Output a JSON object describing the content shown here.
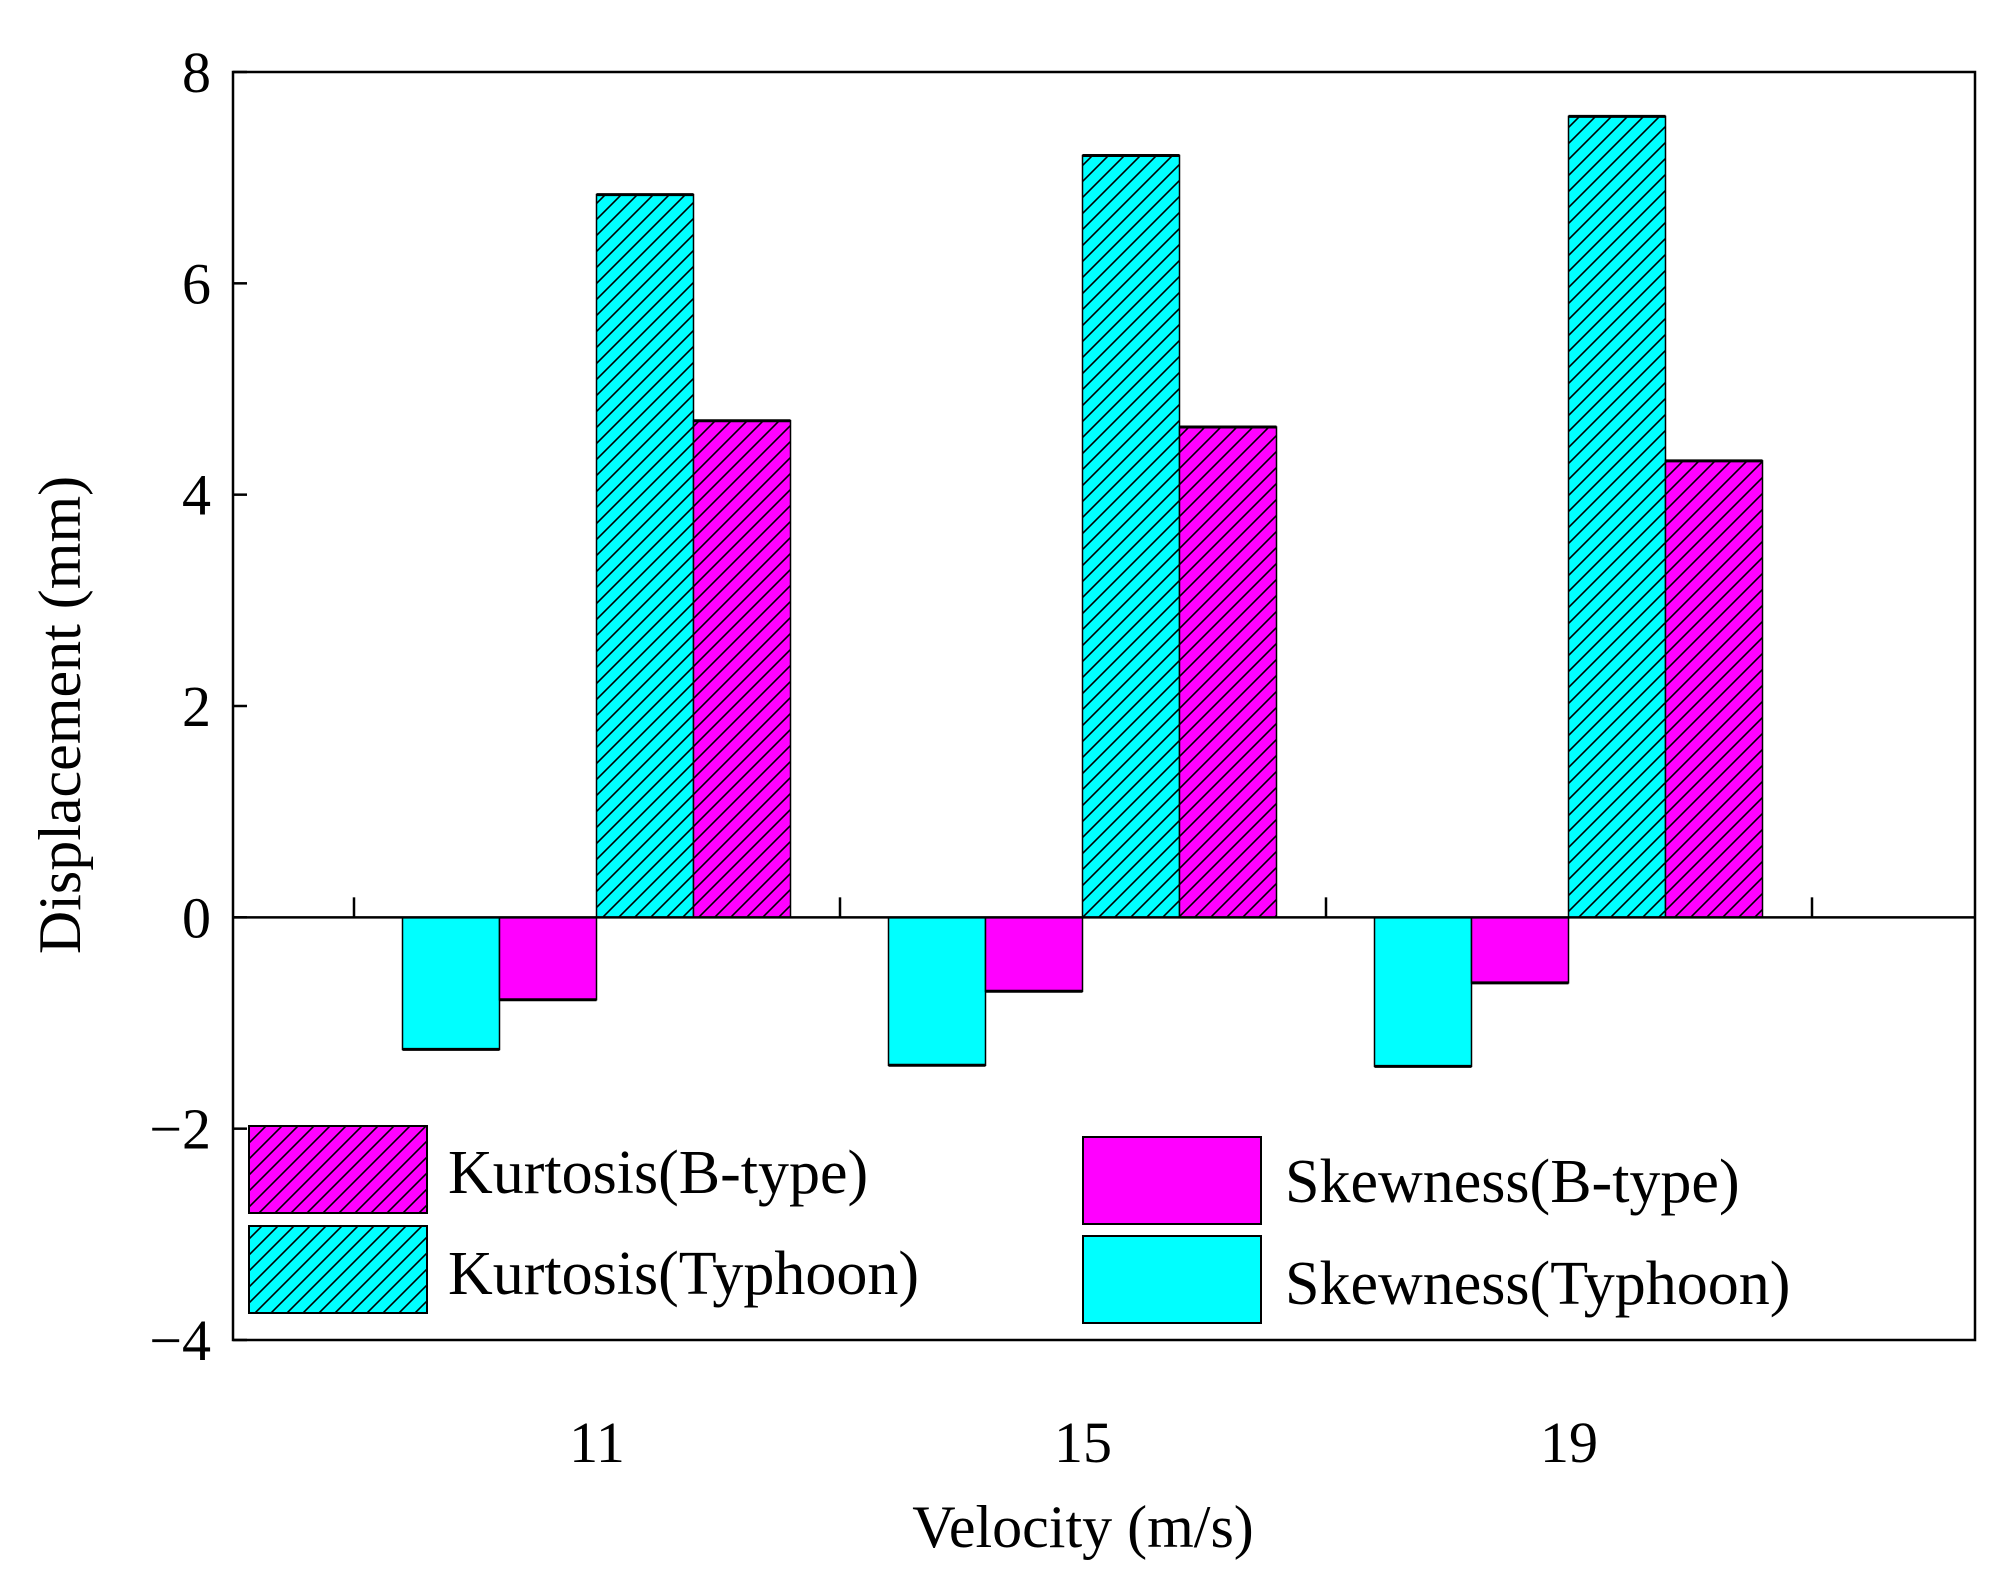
{
  "chart_data": {
    "type": "bar",
    "title": "",
    "xlabel": "Velocity (m/s)",
    "ylabel": "Displacement (mm)",
    "categories": [
      "11",
      "15",
      "19"
    ],
    "ylim": [
      -4,
      8
    ],
    "yticks": [
      -4,
      -2,
      0,
      2,
      4,
      6,
      8
    ],
    "ytick_labels": [
      "−4",
      "−2",
      "0",
      "2",
      "4",
      "6",
      "8"
    ],
    "grid": false,
    "legend_position": "bottom",
    "series": [
      {
        "name": "Skewness(Typhoon)",
        "values": [
          -1.25,
          -1.4,
          -1.41
        ],
        "color": "#00ffff",
        "hatched": false
      },
      {
        "name": "Skewness(B-type)",
        "values": [
          -0.78,
          -0.7,
          -0.62
        ],
        "color": "#ff00ff",
        "hatched": false
      },
      {
        "name": "Kurtosis(Typhoon)",
        "values": [
          6.84,
          7.21,
          7.58
        ],
        "color": "#00ffff",
        "hatched": true
      },
      {
        "name": "Kurtosis(B-type)",
        "values": [
          4.7,
          4.64,
          4.32
        ],
        "color": "#ff00ff",
        "hatched": true
      }
    ],
    "legend": [
      {
        "label": "Kurtosis(B-type)",
        "series": 3
      },
      {
        "label": "Skewness(B-type)",
        "series": 1
      },
      {
        "label": "Kurtosis(Typhoon)",
        "series": 2
      },
      {
        "label": "Skewness(Typhoon)",
        "series": 0
      }
    ]
  }
}
